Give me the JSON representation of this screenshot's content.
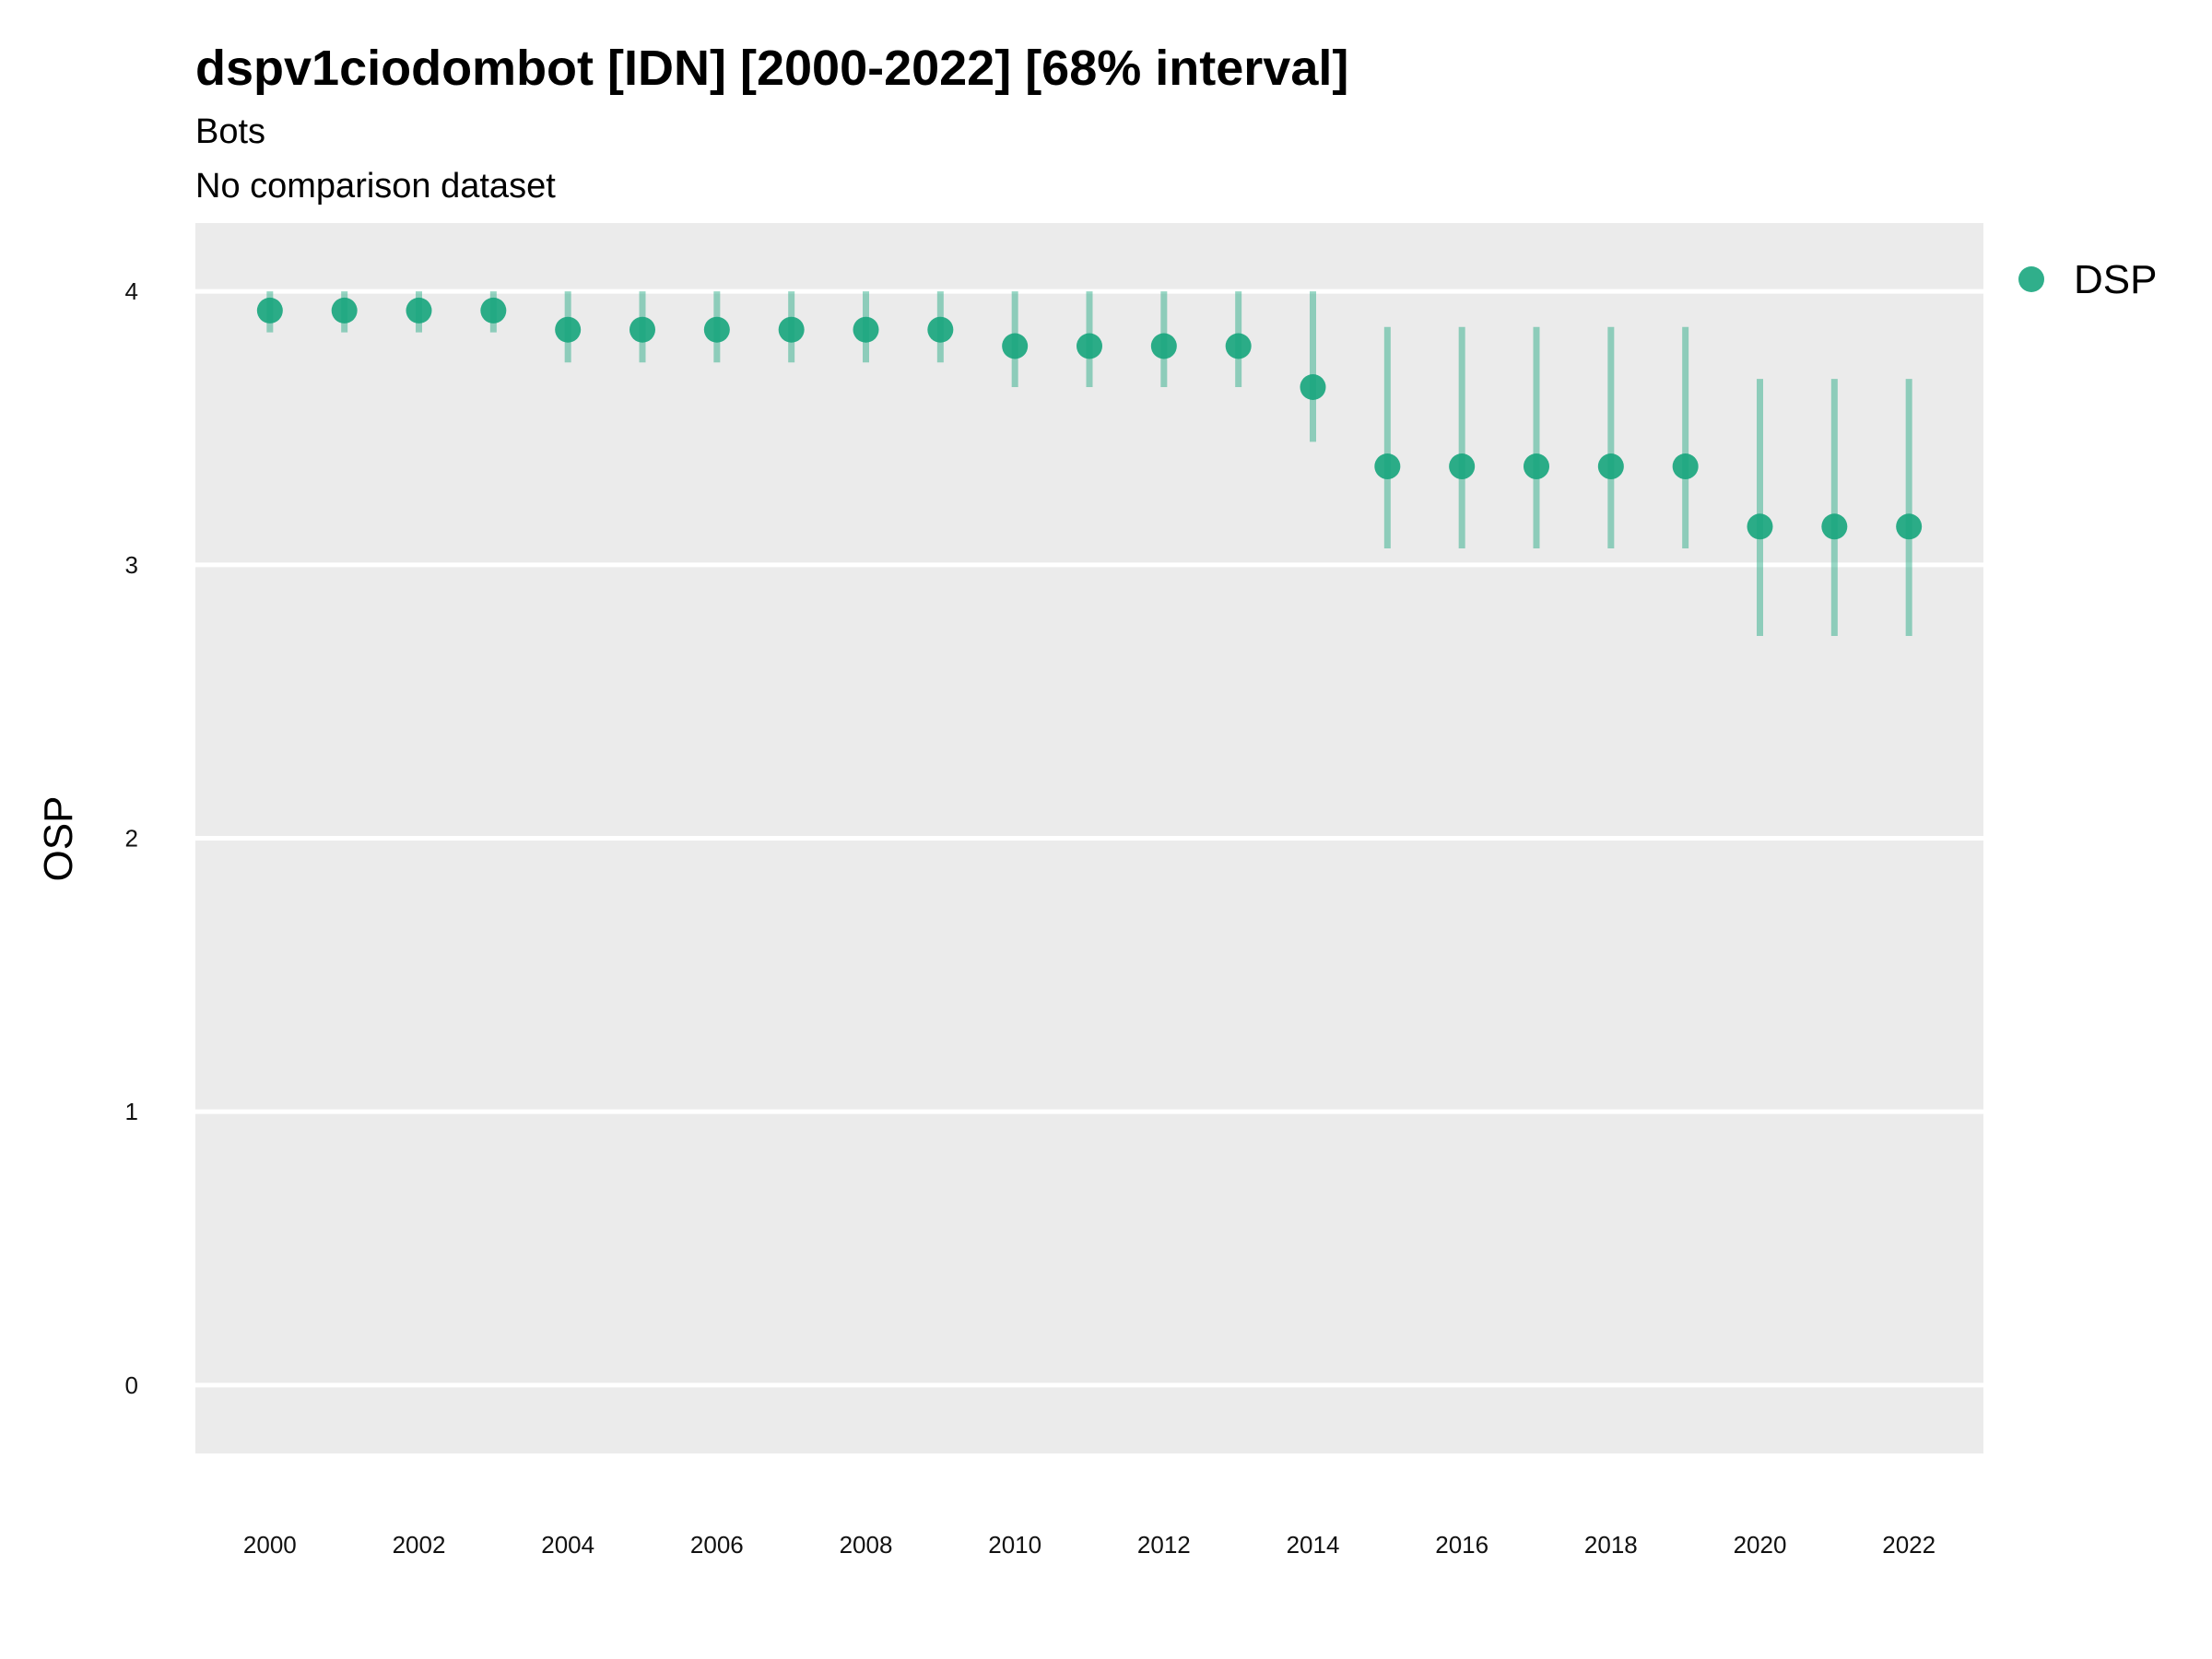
{
  "chart_data": {
    "type": "scatter",
    "title": "dspv1ciodombot [IDN] [2000-2022] [68% interval]",
    "subtitle": "Bots",
    "caption_line": "No comparison dataset",
    "xlabel": "",
    "ylabel": "OSP",
    "xlim": [
      1999,
      2023
    ],
    "ylim": [
      -0.25,
      4.25
    ],
    "y_ticks": [
      0,
      1,
      2,
      3,
      4
    ],
    "x_ticks": [
      2000,
      2002,
      2004,
      2006,
      2008,
      2010,
      2012,
      2014,
      2016,
      2018,
      2020,
      2022
    ],
    "grid": true,
    "legend_position": "right",
    "series": [
      {
        "name": "DSP",
        "color": "#1aa67e",
        "x": [
          2000,
          2001,
          2002,
          2003,
          2004,
          2005,
          2006,
          2007,
          2008,
          2009,
          2010,
          2011,
          2012,
          2013,
          2014,
          2015,
          2016,
          2017,
          2018,
          2019,
          2020,
          2021,
          2022
        ],
        "y": [
          3.93,
          3.93,
          3.93,
          3.93,
          3.86,
          3.86,
          3.86,
          3.86,
          3.86,
          3.86,
          3.8,
          3.8,
          3.8,
          3.8,
          3.65,
          3.36,
          3.36,
          3.36,
          3.36,
          3.36,
          3.14,
          3.14,
          3.14
        ],
        "lower": [
          3.85,
          3.85,
          3.85,
          3.85,
          3.74,
          3.74,
          3.74,
          3.74,
          3.74,
          3.74,
          3.65,
          3.65,
          3.65,
          3.65,
          3.45,
          3.06,
          3.06,
          3.06,
          3.06,
          3.06,
          2.74,
          2.74,
          2.74
        ],
        "upper": [
          4.0,
          4.0,
          4.0,
          4.0,
          4.0,
          4.0,
          4.0,
          4.0,
          4.0,
          4.0,
          4.0,
          4.0,
          4.0,
          4.0,
          4.0,
          3.87,
          3.87,
          3.87,
          3.87,
          3.87,
          3.68,
          3.68,
          3.68
        ]
      }
    ]
  }
}
